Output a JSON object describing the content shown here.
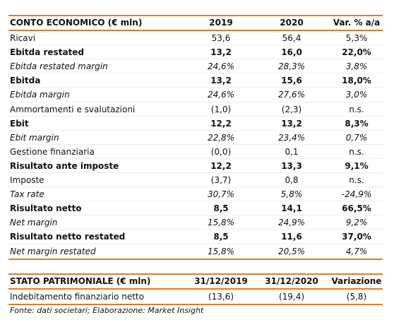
{
  "income_table": {
    "header": [
      "CONTO ECONOMICO (€ mln)",
      "2019",
      "2020",
      "Var. % a/a"
    ],
    "rows": [
      {
        "cells": [
          "Ricavi",
          "53,6",
          "56,4",
          "5,3%"
        ],
        "style": "normal"
      },
      {
        "cells": [
          "Ebitda restated",
          "13,2",
          "16,0",
          "22,0%"
        ],
        "style": "bold"
      },
      {
        "cells": [
          "Ebitda restated margin",
          "24,6%",
          "28,3%",
          "3,8%"
        ],
        "style": "italic"
      },
      {
        "cells": [
          "Ebitda",
          "13,2",
          "15,6",
          "18,0%"
        ],
        "style": "bold"
      },
      {
        "cells": [
          "Ebitda margin",
          "24,6%",
          "27,6%",
          "3,0%"
        ],
        "style": "italic"
      },
      {
        "cells": [
          "Ammortamenti e svalutazioni",
          "(1,0)",
          "(2,3)",
          "n.s."
        ],
        "style": "normal"
      },
      {
        "cells": [
          "Ebit",
          "12,2",
          "13,2",
          "8,3%"
        ],
        "style": "bold"
      },
      {
        "cells": [
          "Ebit margin",
          "22,8%",
          "23,4%",
          "0,7%"
        ],
        "style": "italic"
      },
      {
        "cells": [
          "Gestione finanziaria",
          "(0,0)",
          "0,1",
          "n.s."
        ],
        "style": "normal"
      },
      {
        "cells": [
          "Risultato ante imposte",
          "12,2",
          "13,3",
          "9,1%"
        ],
        "style": "bold"
      },
      {
        "cells": [
          "Imposte",
          "(3,7)",
          "0,8",
          "n.s."
        ],
        "style": "normal"
      },
      {
        "cells": [
          "Tax rate",
          "30,7%",
          "5,8%",
          "-24,9%"
        ],
        "style": "italic"
      },
      {
        "cells": [
          "Risultato netto",
          "8,5",
          "14,1",
          "66,5%"
        ],
        "style": "bold"
      },
      {
        "cells": [
          "Net margin",
          "15,8%",
          "24,9%",
          "9,2%"
        ],
        "style": "italic"
      },
      {
        "cells": [
          "Risultato netto restated",
          "8,5",
          "11,6",
          "37,0%"
        ],
        "style": "bold"
      },
      {
        "cells": [
          "Net margin restated",
          "15,8%",
          "20,5%",
          "4,7%"
        ],
        "style": "italic"
      }
    ]
  },
  "balance_table": {
    "header": [
      "STATO PATRIMONIALE (€ mln)",
      "31/12/2019",
      "31/12/2020",
      "Variazione"
    ],
    "rows": [
      {
        "cells": [
          "Indebitamento finanziario netto",
          "(13,6)",
          "(19,4)",
          "(5,8)"
        ],
        "style": "normal"
      }
    ]
  },
  "footer": "Fonte: dati societari; Elaborazione: Market Insight"
}
